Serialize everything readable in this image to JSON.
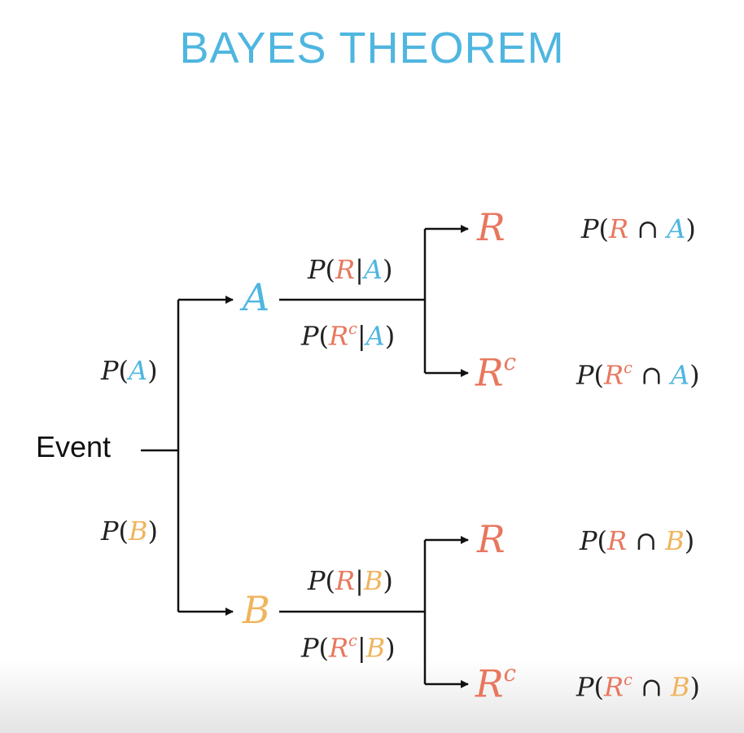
{
  "title": "BAYES THEOREM",
  "root": {
    "label": "Event"
  },
  "colors": {
    "A": "#4fb6e0",
    "B": "#f0b45c",
    "R": "#e8775e",
    "text": "#222222",
    "line": "#111111"
  },
  "symbols": {
    "P": "P",
    "open": "(",
    "close": ")",
    "given": "|",
    "cap": "∩",
    "complement_sup": "c"
  },
  "nodes": {
    "A": "A",
    "B": "B",
    "R": "R"
  }
}
